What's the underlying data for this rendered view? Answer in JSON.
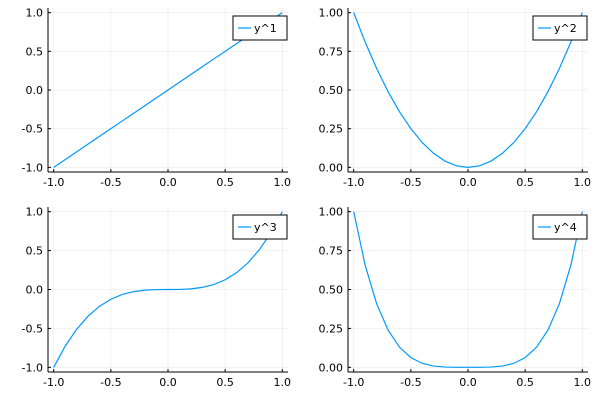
{
  "chart_data": [
    {
      "type": "line",
      "xlim": [
        -1.05,
        1.05
      ],
      "ylim": [
        -1.06,
        1.06
      ],
      "xticks": [
        -1.0,
        -0.5,
        0.0,
        0.5,
        1.0
      ],
      "xtick_labels": [
        "-1.0",
        "-0.5",
        "0.0",
        "0.5",
        "1.0"
      ],
      "yticks": [
        -1.0,
        -0.5,
        0.0,
        0.5,
        1.0
      ],
      "ytick_labels": [
        "-1.0",
        "-0.5",
        "0.0",
        "0.5",
        "1.0"
      ],
      "grid": true,
      "legend_position": "top-right",
      "series": [
        {
          "name": "y^1",
          "color": "#009af9",
          "x": [
            -1.0,
            -0.9,
            -0.8,
            -0.7,
            -0.6,
            -0.5,
            -0.4,
            -0.3,
            -0.2,
            -0.1,
            0.0,
            0.1,
            0.2,
            0.3,
            0.4,
            0.5,
            0.6,
            0.7,
            0.8,
            0.9,
            1.0
          ],
          "y": [
            -1.0,
            -0.9,
            -0.8,
            -0.7,
            -0.6,
            -0.5,
            -0.4,
            -0.3,
            -0.2,
            -0.1,
            0.0,
            0.1,
            0.2,
            0.3,
            0.4,
            0.5,
            0.6,
            0.7,
            0.8,
            0.9,
            1.0
          ]
        }
      ]
    },
    {
      "type": "line",
      "xlim": [
        -1.05,
        1.05
      ],
      "ylim": [
        -0.03,
        1.03
      ],
      "xticks": [
        -1.0,
        -0.5,
        0.0,
        0.5,
        1.0
      ],
      "xtick_labels": [
        "-1.0",
        "-0.5",
        "0.0",
        "0.5",
        "1.0"
      ],
      "yticks": [
        0.0,
        0.25,
        0.5,
        0.75,
        1.0
      ],
      "ytick_labels": [
        "0.00",
        "0.25",
        "0.50",
        "0.75",
        "1.00"
      ],
      "grid": true,
      "legend_position": "top-right",
      "series": [
        {
          "name": "y^2",
          "color": "#009af9",
          "x": [
            -1.0,
            -0.9,
            -0.8,
            -0.7,
            -0.6,
            -0.5,
            -0.4,
            -0.3,
            -0.2,
            -0.1,
            0.0,
            0.1,
            0.2,
            0.3,
            0.4,
            0.5,
            0.6,
            0.7,
            0.8,
            0.9,
            1.0
          ],
          "y": [
            1.0,
            0.81,
            0.64,
            0.49,
            0.36,
            0.25,
            0.16,
            0.09,
            0.04,
            0.01,
            0.0,
            0.01,
            0.04,
            0.09,
            0.16,
            0.25,
            0.36,
            0.49,
            0.64,
            0.81,
            1.0
          ]
        }
      ]
    },
    {
      "type": "line",
      "xlim": [
        -1.05,
        1.05
      ],
      "ylim": [
        -1.06,
        1.06
      ],
      "xticks": [
        -1.0,
        -0.5,
        0.0,
        0.5,
        1.0
      ],
      "xtick_labels": [
        "-1.0",
        "-0.5",
        "0.0",
        "0.5",
        "1.0"
      ],
      "yticks": [
        -1.0,
        -0.5,
        0.0,
        0.5,
        1.0
      ],
      "ytick_labels": [
        "-1.0",
        "-0.5",
        "0.0",
        "0.5",
        "1.0"
      ],
      "grid": true,
      "legend_position": "top-right",
      "series": [
        {
          "name": "y^3",
          "color": "#009af9",
          "x": [
            -1.0,
            -0.9,
            -0.8,
            -0.7,
            -0.6,
            -0.5,
            -0.4,
            -0.3,
            -0.2,
            -0.1,
            0.0,
            0.1,
            0.2,
            0.3,
            0.4,
            0.5,
            0.6,
            0.7,
            0.8,
            0.9,
            1.0
          ],
          "y": [
            -1.0,
            -0.729,
            -0.512,
            -0.343,
            -0.216,
            -0.125,
            -0.064,
            -0.027,
            -0.008,
            -0.001,
            0.0,
            0.001,
            0.008,
            0.027,
            0.064,
            0.125,
            0.216,
            0.343,
            0.512,
            0.729,
            1.0
          ]
        }
      ]
    },
    {
      "type": "line",
      "xlim": [
        -1.05,
        1.05
      ],
      "ylim": [
        -0.03,
        1.03
      ],
      "xticks": [
        -1.0,
        -0.5,
        0.0,
        0.5,
        1.0
      ],
      "xtick_labels": [
        "-1.0",
        "-0.5",
        "0.0",
        "0.5",
        "1.0"
      ],
      "yticks": [
        0.0,
        0.25,
        0.5,
        0.75,
        1.0
      ],
      "ytick_labels": [
        "0.00",
        "0.25",
        "0.50",
        "0.75",
        "1.00"
      ],
      "grid": true,
      "legend_position": "top-right",
      "series": [
        {
          "name": "y^4",
          "color": "#009af9",
          "x": [
            -1.0,
            -0.9,
            -0.8,
            -0.7,
            -0.6,
            -0.5,
            -0.4,
            -0.3,
            -0.2,
            -0.1,
            0.0,
            0.1,
            0.2,
            0.3,
            0.4,
            0.5,
            0.6,
            0.7,
            0.8,
            0.9,
            1.0
          ],
          "y": [
            1.0,
            0.6561,
            0.4096,
            0.2401,
            0.1296,
            0.0625,
            0.0256,
            0.0081,
            0.0016,
            0.0001,
            0.0,
            0.0001,
            0.0016,
            0.0081,
            0.0256,
            0.0625,
            0.1296,
            0.2401,
            0.4096,
            0.6561,
            1.0
          ]
        }
      ]
    }
  ]
}
